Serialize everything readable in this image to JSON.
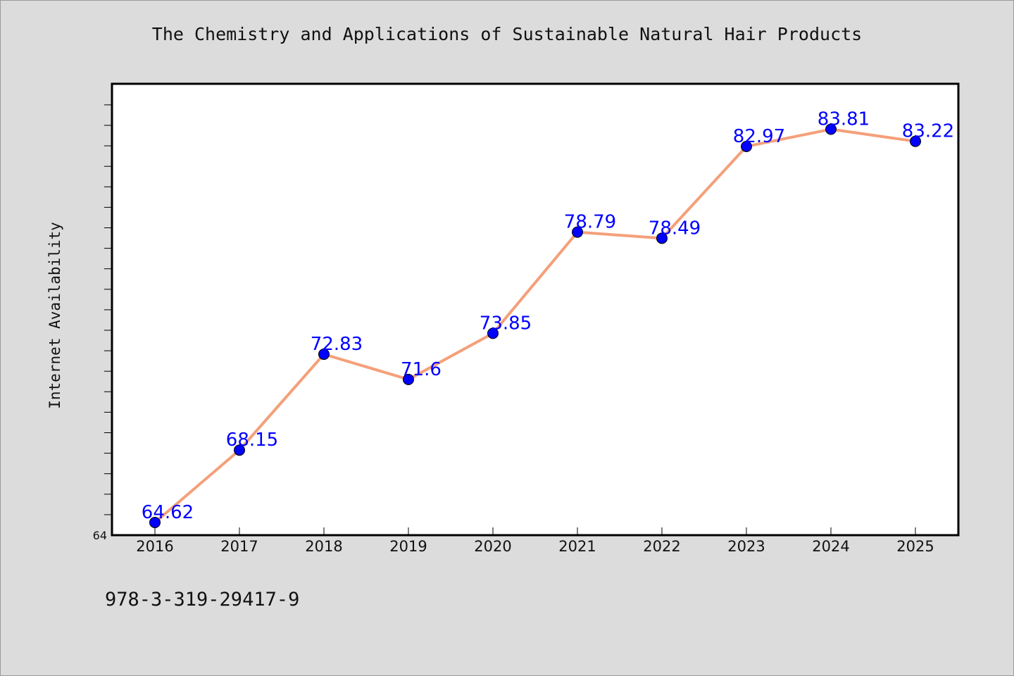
{
  "chart_data": {
    "type": "line",
    "title": "The Chemistry and Applications of Sustainable Natural Hair Products",
    "ylabel": "Internet Availability",
    "xlabel": "",
    "categories": [
      "2016",
      "2017",
      "2018",
      "2019",
      "2020",
      "2021",
      "2022",
      "2023",
      "2024",
      "2025"
    ],
    "values": [
      64.62,
      68.15,
      72.83,
      71.6,
      73.85,
      78.79,
      78.49,
      82.97,
      83.81,
      83.22
    ],
    "data_labels": [
      "64.62",
      "68.15",
      "72.83",
      "71.6",
      "73.85",
      "78.79",
      "78.49",
      "82.97",
      "83.81",
      "83.22"
    ],
    "y_tick_labels": [
      "64"
    ],
    "ylim": [
      64,
      86
    ],
    "grid": false,
    "legend": "none",
    "colors": {
      "line": "#f4a07a",
      "marker": "#0000ff",
      "data_label": "#0000ff",
      "plot_background": "#ffffff",
      "page_background": "#dcdcdc"
    }
  },
  "footer": {
    "isbn": "978-3-319-29417-9"
  }
}
